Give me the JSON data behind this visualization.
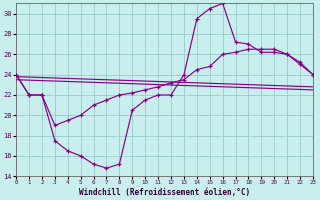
{
  "xlabel": "Windchill (Refroidissement éolien,°C)",
  "bg_color": "#c8eeee",
  "grid_color": "#99cccc",
  "line_color": "#880088",
  "xlim": [
    0,
    23
  ],
  "ylim": [
    14,
    31
  ],
  "yticks": [
    14,
    16,
    18,
    20,
    22,
    24,
    26,
    28,
    30
  ],
  "xticks": [
    0,
    1,
    2,
    3,
    4,
    5,
    6,
    7,
    8,
    9,
    10,
    11,
    12,
    13,
    14,
    15,
    16,
    17,
    18,
    19,
    20,
    21,
    22,
    23
  ],
  "curve1_x": [
    0,
    1,
    2,
    3,
    4,
    5,
    6,
    7,
    8,
    9,
    10,
    11,
    12,
    13,
    14,
    15,
    16,
    17,
    18,
    19,
    20,
    21,
    22,
    23
  ],
  "curve1_y": [
    24,
    22,
    22,
    17.5,
    16.5,
    16,
    15.2,
    14.8,
    15.2,
    20.5,
    21.5,
    22,
    22,
    24,
    29.5,
    30.5,
    31,
    27.2,
    27,
    26.2,
    26.2,
    26,
    25.2,
    24
  ],
  "curve2_x": [
    0,
    1,
    2,
    3,
    4,
    5,
    6,
    7,
    8,
    9,
    10,
    11,
    12,
    13,
    14,
    15,
    16,
    17,
    18,
    19,
    20,
    21,
    22,
    23
  ],
  "curve2_y": [
    24,
    22,
    22,
    19.0,
    19.5,
    20,
    21,
    21.5,
    22,
    22.2,
    22.5,
    22.8,
    23.2,
    23.5,
    24.5,
    24.8,
    26,
    26.2,
    26.5,
    26.5,
    26.5,
    26.0,
    25.0,
    24
  ],
  "line1_x": [
    0,
    23
  ],
  "line1_y": [
    23.8,
    22.8
  ],
  "line2_x": [
    0,
    23
  ],
  "line2_y": [
    23.5,
    22.5
  ]
}
